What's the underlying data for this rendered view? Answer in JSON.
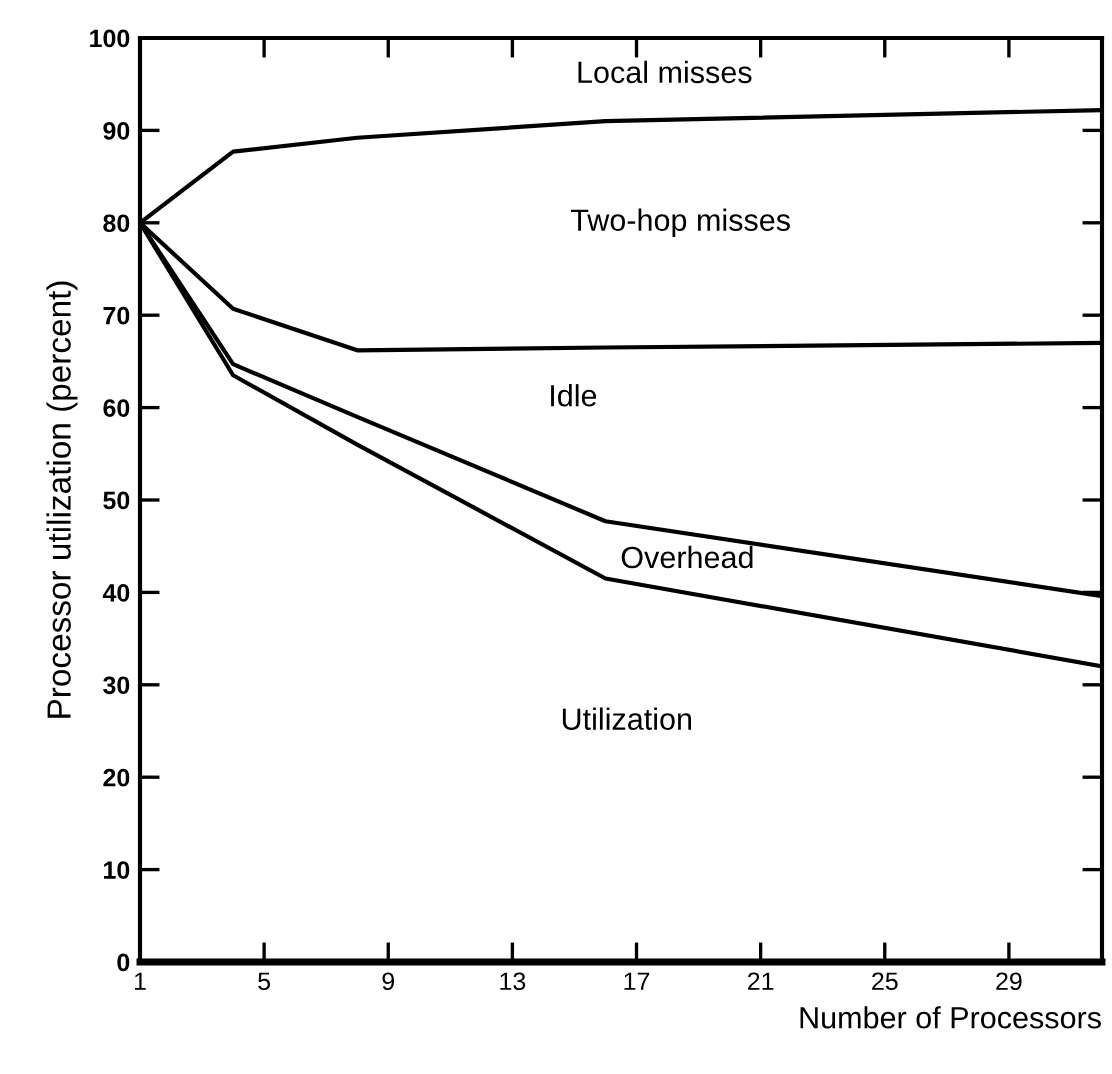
{
  "chart_data": {
    "type": "line",
    "xlabel": "Number of Processors",
    "ylabel": "Processor utilization (percent)",
    "xlim": [
      1,
      32
    ],
    "ylim": [
      0,
      100
    ],
    "xticks": [
      1,
      5,
      9,
      13,
      17,
      21,
      25,
      29
    ],
    "yticks": [
      0,
      10,
      20,
      30,
      40,
      50,
      60,
      70,
      80,
      90,
      100
    ],
    "x": [
      1,
      4,
      8,
      16,
      32
    ],
    "series": [
      {
        "color": "#000000",
        "values": [
          80,
          87.7,
          89.2,
          91,
          92.2
        ]
      },
      {
        "color": "#000000",
        "values": [
          80,
          70.7,
          66.2,
          66.5,
          67
        ]
      },
      {
        "color": "#000000",
        "values": [
          80,
          64.7,
          59,
          47.7,
          39.6
        ]
      },
      {
        "color": "#000000",
        "values": [
          80,
          63.5,
          56,
          41.5,
          32
        ]
      }
    ],
    "annotations": [
      "Local misses",
      "Two-hop misses",
      "Idle",
      "Overhead",
      "Utilization"
    ],
    "grid": false,
    "legend": false,
    "marker": "none",
    "line_style": "solid"
  }
}
